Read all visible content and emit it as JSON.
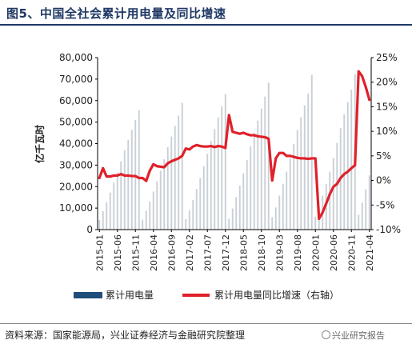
{
  "figure": {
    "title": "图5、中国全社会累计用电量及同比增速",
    "source": "资料来源：国家能源局，兴业证券经济与金融研究院整理",
    "watermark": "兴业研究报告"
  },
  "colors": {
    "title": "#1f3864",
    "bars": "#c9cfd6",
    "legend_bar": "#1f4e79",
    "line": "#e0202a"
  },
  "chart_data": {
    "type": "bar",
    "title": "",
    "ylabel": "亿千瓦时",
    "ylim": [
      0,
      80000
    ],
    "y2lim": [
      -10,
      25
    ],
    "yticks": [
      "80,000",
      "70,000",
      "60,000",
      "50,000",
      "40,000",
      "30,000",
      "20,000",
      "10,000",
      "0"
    ],
    "y2ticks": [
      "25%",
      "20%",
      "15%",
      "10%",
      "5%",
      "0%",
      "-5%",
      "-10%"
    ],
    "xticks": [
      "2015-01",
      "2015-06",
      "2015-11",
      "2016-04",
      "2016-09",
      "2017-02",
      "2017-07",
      "2017-12",
      "2018-05",
      "2018-10",
      "2019-03",
      "2019-08",
      "2020-01",
      "2020-06",
      "2020-11",
      "2021-04"
    ],
    "legend": {
      "bar": "累计用电量",
      "line": "累计用电量同比增速（右轴）",
      "position": "bottom"
    },
    "series": [
      {
        "name": "累计用电量",
        "axis": "left",
        "values": [
          4500,
          8500,
          12700,
          17200,
          21800,
          26500,
          31700,
          36900,
          41800,
          46500,
          51000,
          55500,
          4600,
          8700,
          13100,
          17700,
          22400,
          27300,
          32700,
          38300,
          43300,
          48300,
          53000,
          59000,
          4900,
          9000,
          13800,
          18900,
          24000,
          29500,
          35300,
          41200,
          46700,
          52200,
          57300,
          63000,
          5100,
          9800,
          15100,
          20500,
          26100,
          32300,
          38800,
          45000,
          50700,
          56300,
          61900,
          68400,
          5800,
          10300,
          15800,
          21300,
          26900,
          33100,
          39800,
          46400,
          52200,
          57800,
          63300,
          72000,
          6000,
          10600,
          15800,
          21100,
          26900,
          33300,
          40300,
          47200,
          53600,
          59300,
          65100,
          72300,
          6900,
          12500,
          18700,
          25200
        ]
      },
      {
        "name": "累计用电量同比增速",
        "axis": "right",
        "values": [
          0.5,
          2.5,
          0.8,
          0.8,
          1.0,
          1.0,
          1.3,
          1.0,
          1.0,
          0.9,
          0.9,
          0.5,
          0.5,
          -0.1,
          2.0,
          3.3,
          2.9,
          2.8,
          2.7,
          3.5,
          3.9,
          4.2,
          4.5,
          5.0,
          6.5,
          6.3,
          6.9,
          7.2,
          7.0,
          6.9,
          6.9,
          7.0,
          6.8,
          7.0,
          6.9,
          6.6,
          13.3,
          9.9,
          9.7,
          9.5,
          9.7,
          9.4,
          9.2,
          9.2,
          9.0,
          8.9,
          8.8,
          8.5,
          0.0,
          4.5,
          5.6,
          5.6,
          5.0,
          5.0,
          4.8,
          4.6,
          4.5,
          4.5,
          4.4,
          4.5,
          4.5,
          -7.8,
          -6.5,
          -4.7,
          -2.8,
          -1.3,
          -0.7,
          0.5,
          1.3,
          1.8,
          2.5,
          3.1,
          22.2,
          21.2,
          19.0,
          16.4
        ]
      }
    ]
  }
}
